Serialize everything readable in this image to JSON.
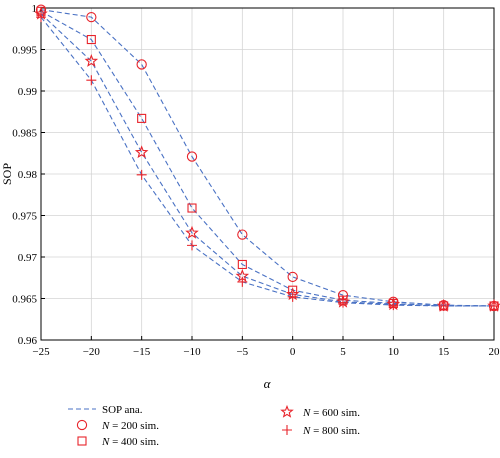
{
  "chart_data": {
    "type": "line",
    "x": [
      -25,
      -20,
      -15,
      -10,
      -5,
      0,
      5,
      10,
      15,
      20
    ],
    "xlabel": "α",
    "ylabel": "SOP",
    "xlim": [
      -25,
      20
    ],
    "ylim": [
      0.96,
      1
    ],
    "xticks": [
      -25,
      -20,
      -15,
      -10,
      -5,
      0,
      5,
      10,
      15,
      20
    ],
    "yticks": [
      0.96,
      0.965,
      0.97,
      0.975,
      0.98,
      0.985,
      0.99,
      0.995,
      1
    ],
    "ytick_labels": [
      "0.96",
      "0.965",
      "0.97",
      "0.975",
      "0.98",
      "0.985",
      "0.99",
      "0.995",
      "1"
    ],
    "grid": true,
    "legend_placement": "below",
    "colors": {
      "line": "#4a72c4",
      "marker": "#e8232a"
    },
    "analytic_label": "SOP ana.",
    "series": [
      {
        "n_prefix": "N",
        "n_suffix": " = 200 sim.",
        "marker": "circle",
        "values": [
          0.9998,
          0.9989,
          0.9932,
          0.9821,
          0.9727,
          0.9676,
          0.9654,
          0.9646,
          0.9642,
          0.9641
        ]
      },
      {
        "n_prefix": "N",
        "n_suffix": " = 400 sim.",
        "marker": "square",
        "values": [
          0.9996,
          0.9962,
          0.9867,
          0.9759,
          0.9691,
          0.966,
          0.9648,
          0.9644,
          0.9641,
          0.9641
        ]
      },
      {
        "n_prefix": "N",
        "n_suffix": " = 600 sim.",
        "marker": "star",
        "values": [
          0.9993,
          0.9936,
          0.9826,
          0.9729,
          0.9677,
          0.9655,
          0.9646,
          0.9643,
          0.9641,
          0.9641
        ]
      },
      {
        "n_prefix": "N",
        "n_suffix": " = 800 sim.",
        "marker": "plus",
        "values": [
          0.9989,
          0.9913,
          0.9799,
          0.9714,
          0.967,
          0.9652,
          0.9645,
          0.9642,
          0.9641,
          0.9641
        ]
      }
    ]
  }
}
